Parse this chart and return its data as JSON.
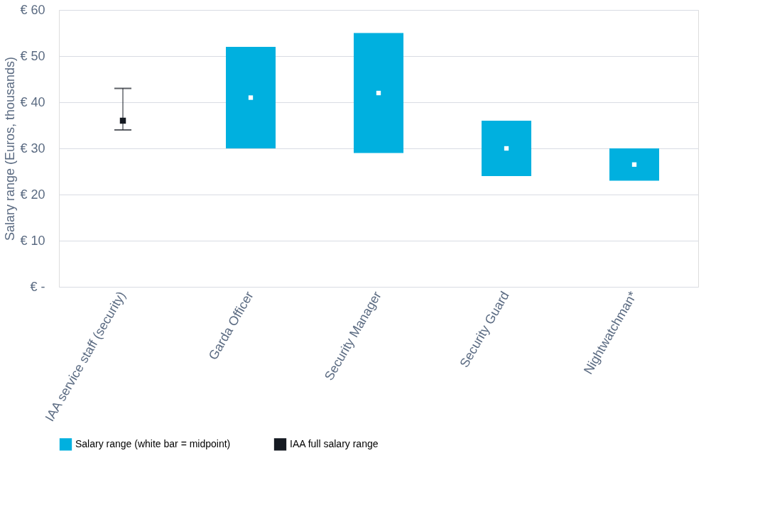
{
  "chart_data": {
    "type": "bar",
    "ylabel": "Salary range (Euros, thousands)",
    "categories": [
      "IAA service staff (security)",
      "Garda Officer",
      "Security Manager",
      "Security Guard",
      "Nightwatchman*"
    ],
    "series": [
      {
        "name": "Salary range (white bar = midpoint)",
        "color": "#00b0df",
        "base": [
          null,
          30,
          29,
          24,
          23
        ],
        "values": [
          null,
          22,
          26,
          12,
          7
        ]
      },
      {
        "type": "scatter",
        "color": "#ffffff",
        "values": [
          null,
          41,
          42,
          30,
          26.5
        ]
      },
      {
        "name": "IAA full salary range",
        "type": "scatter",
        "color": "#151a22",
        "values": [
          36,
          null,
          null,
          null,
          null
        ],
        "errors": [
          [
            34,
            43
          ],
          null,
          null,
          null,
          null
        ]
      }
    ],
    "ylim": [
      0,
      60
    ],
    "yticks": [
      {
        "value": 0,
        "label": "€ -"
      },
      {
        "value": 10,
        "label": "€ 10"
      },
      {
        "value": 20,
        "label": "€ 20"
      },
      {
        "value": 30,
        "label": "€ 30"
      },
      {
        "value": 40,
        "label": "€ 40"
      },
      {
        "value": 50,
        "label": "€ 50"
      },
      {
        "value": 60,
        "label": "€ 60"
      }
    ],
    "grid": "y",
    "legend": "bottom",
    "marker": "square"
  }
}
